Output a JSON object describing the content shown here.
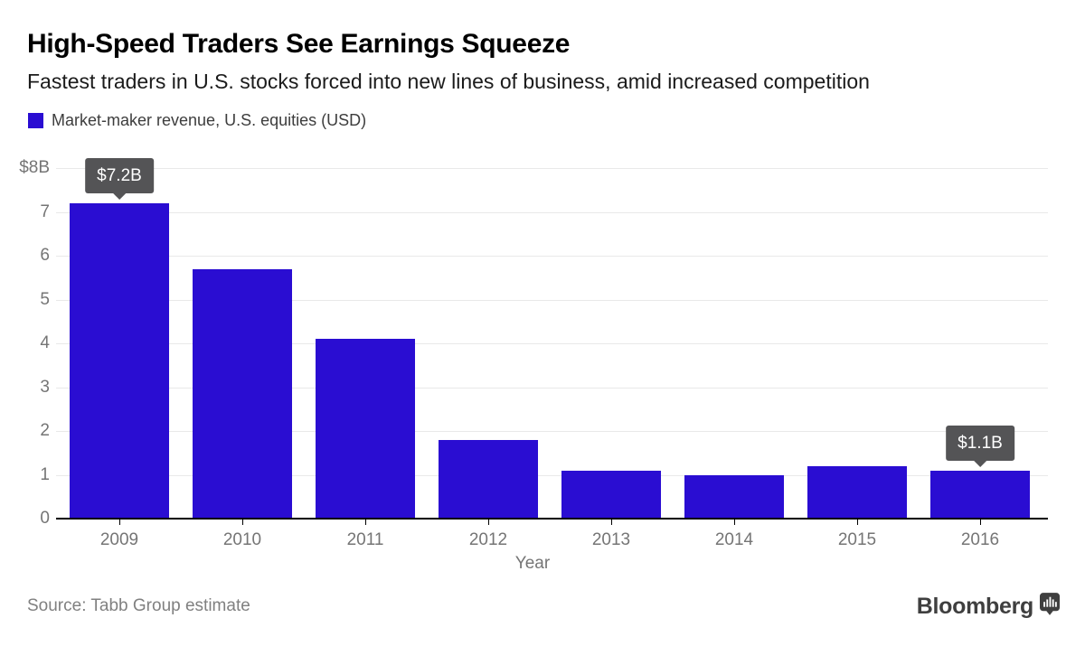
{
  "header": {
    "title": "High-Speed Traders See Earnings Squeeze",
    "subtitle": "Fastest traders in U.S. stocks forced into new lines of business, amid increased competition"
  },
  "legend": {
    "label": "Market-maker revenue, U.S. equities (USD)"
  },
  "chart_data": {
    "type": "bar",
    "title": "Market-maker revenue, U.S. equities (USD)",
    "categories": [
      "2009",
      "2010",
      "2011",
      "2012",
      "2013",
      "2014",
      "2015",
      "2016"
    ],
    "values": [
      7.2,
      5.7,
      4.1,
      1.8,
      1.1,
      1.0,
      1.2,
      1.1
    ],
    "xlabel": "Year",
    "ylabel": "",
    "ylim": [
      0,
      8
    ],
    "ytick_labels": [
      "0",
      "1",
      "2",
      "3",
      "4",
      "5",
      "6",
      "7",
      "$8B"
    ],
    "grid": true,
    "legend_position": "top-left",
    "bar_color": "#2a0dd2",
    "annotations": [
      {
        "category": "2009",
        "label": "$7.2B"
      },
      {
        "category": "2016",
        "label": "$1.1B"
      }
    ]
  },
  "colors": {
    "bar": "#2a0dd2",
    "tooltip_bg": "#545456",
    "axis_text": "#757575",
    "gridline": "#e9e9e9",
    "source_text": "#808080",
    "brand_text": "#3f3f3f"
  },
  "footer": {
    "source": "Source: Tabb Group estimate",
    "brand": "Bloomberg"
  }
}
